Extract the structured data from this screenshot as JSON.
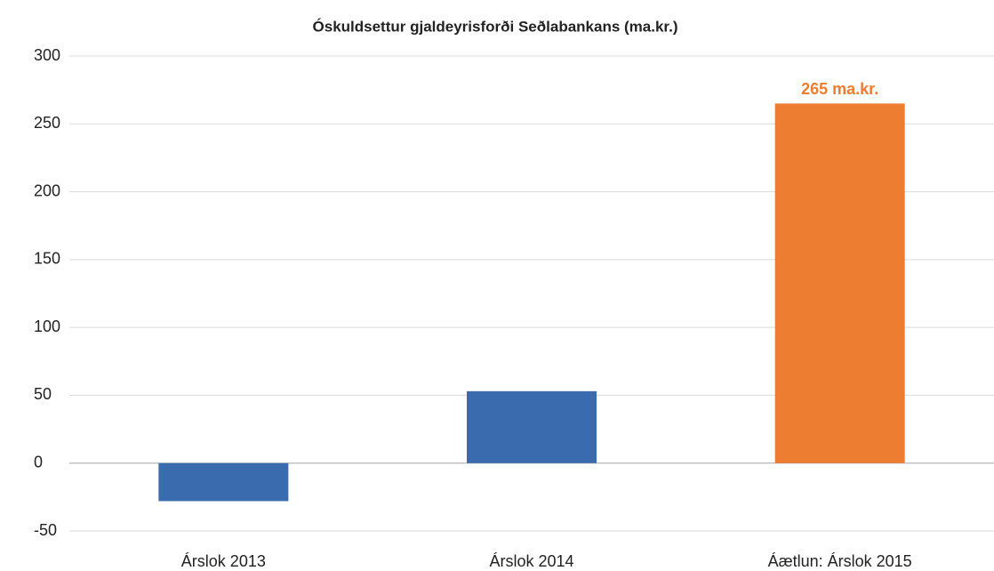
{
  "chart_data": {
    "type": "bar",
    "title": "Óskuldsettur gjaldeyrisforði Seðlabankans (ma.kr.)",
    "categories": [
      "Árslok 2013",
      "Árslok 2014",
      "Áætlun: Árslok 2015"
    ],
    "values": [
      -28,
      53,
      265
    ],
    "value_labels": [
      null,
      null,
      "265 ma.kr."
    ],
    "colors": [
      "#3a6baf",
      "#3a6baf",
      "#ed7d31"
    ],
    "ylim": [
      -50,
      300
    ],
    "yticks": [
      -50,
      0,
      50,
      100,
      150,
      200,
      250,
      300
    ],
    "grid": true
  }
}
